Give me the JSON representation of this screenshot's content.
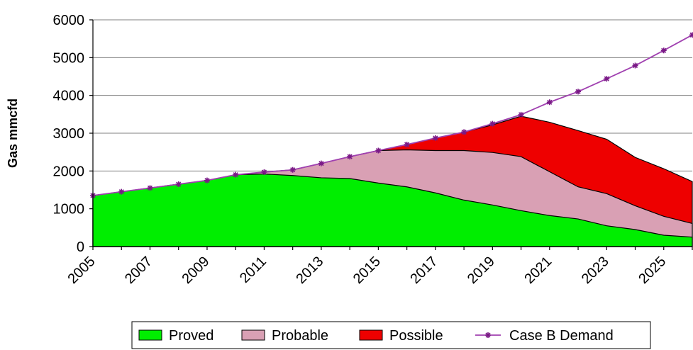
{
  "chart_data": {
    "type": "area",
    "ylabel": "Gas mmcfd",
    "xlabel": "",
    "title": "",
    "xlim": [
      2005,
      2026
    ],
    "ylim": [
      0,
      6000
    ],
    "y_ticks": [
      0,
      1000,
      2000,
      3000,
      4000,
      5000,
      6000
    ],
    "x_ticks": [
      2005,
      2007,
      2009,
      2011,
      2013,
      2015,
      2017,
      2019,
      2021,
      2023,
      2025
    ],
    "x": [
      2005,
      2006,
      2007,
      2008,
      2009,
      2010,
      2011,
      2012,
      2013,
      2014,
      2015,
      2016,
      2017,
      2018,
      2019,
      2020,
      2021,
      2022,
      2023,
      2024,
      2025,
      2026
    ],
    "series": [
      {
        "name": "Proved",
        "kind": "area",
        "color": "#00ee00",
        "values": [
          1350,
          1450,
          1550,
          1650,
          1750,
          1900,
          1920,
          1880,
          1820,
          1800,
          1680,
          1580,
          1420,
          1230,
          1100,
          950,
          820,
          730,
          550,
          450,
          300,
          250
        ]
      },
      {
        "name": "Probable",
        "kind": "area",
        "color": "#d9a0b4",
        "values": [
          1350,
          1450,
          1550,
          1650,
          1750,
          1900,
          1970,
          2030,
          2200,
          2380,
          2540,
          2560,
          2540,
          2540,
          2490,
          2380,
          1980,
          1580,
          1400,
          1080,
          800,
          610
        ]
      },
      {
        "name": "Possible",
        "kind": "area",
        "color": "#ee0000",
        "values": [
          1350,
          1450,
          1550,
          1650,
          1750,
          1900,
          1970,
          2030,
          2200,
          2380,
          2540,
          2700,
          2870,
          3030,
          3220,
          3450,
          3290,
          3070,
          2840,
          2360,
          2060,
          1720
        ]
      },
      {
        "name": "Case B Demand",
        "kind": "line",
        "color": "#a040b0",
        "values": [
          1350,
          1450,
          1550,
          1650,
          1750,
          1900,
          1970,
          2030,
          2200,
          2380,
          2540,
          2700,
          2870,
          3030,
          3250,
          3490,
          3820,
          4100,
          4440,
          4790,
          5190,
          5600
        ]
      }
    ],
    "grid": "horizontal",
    "legend_position": "bottom"
  }
}
